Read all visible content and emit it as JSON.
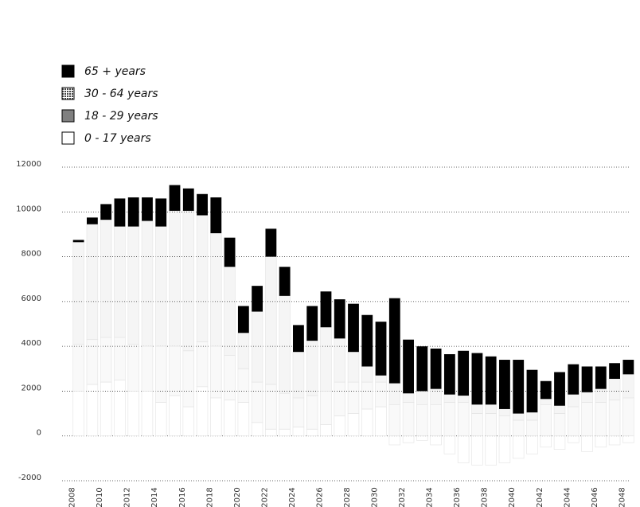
{
  "chart_data": {
    "type": "stacked-bar",
    "categories": [
      "2008",
      null,
      "2010",
      null,
      "2012",
      null,
      "2014",
      null,
      "2016",
      null,
      "2018",
      null,
      "2020",
      null,
      "2022",
      null,
      "2024",
      null,
      "2026",
      null,
      "2028",
      null,
      "2030",
      null,
      "2032",
      null,
      "2034",
      null,
      "2036",
      null,
      "2038",
      null,
      "2040",
      null,
      "2042",
      null,
      "2044",
      null,
      "2046",
      null,
      "2048"
    ],
    "series": [
      {
        "name": "65 + years",
        "color": "#000000",
        "values": [
          100,
          300,
          700,
          1250,
          1300,
          1050,
          1250,
          1150,
          1000,
          950,
          1600,
          1300,
          1200,
          1150,
          1250,
          1300,
          1200,
          1550,
          1600,
          1750,
          2150,
          2300,
          2400,
          3800,
          2400,
          2000,
          1800,
          1800,
          2000,
          2300,
          2150,
          2200,
          2400,
          1900,
          800,
          1500,
          1350,
          1150,
          1000,
          700,
          650
        ]
      },
      {
        "name": "30 - 64 years",
        "color": "#444444",
        "values": [
          4550,
          5150,
          5250,
          4950,
          5250,
          5600,
          5350,
          6050,
          6250,
          5650,
          5050,
          3950,
          1600,
          3150,
          5700,
          4350,
          2050,
          2450,
          2850,
          1950,
          1350,
          700,
          300,
          950,
          400,
          600,
          700,
          350,
          300,
          400,
          400,
          300,
          300,
          350,
          250,
          350,
          550,
          450,
          600,
          950,
          1050
        ]
      },
      {
        "name": "18 - 29 years",
        "color": "#808080",
        "values": [
          2100,
          2000,
          2000,
          1900,
          2100,
          2000,
          2500,
          2200,
          2500,
          2000,
          2300,
          2000,
          1500,
          1800,
          2000,
          1600,
          1300,
          1500,
          1500,
          1500,
          1400,
          1200,
          1100,
          1400,
          1500,
          1400,
          1400,
          1500,
          1500,
          1000,
          1000,
          900,
          700,
          700,
          1400,
          1000,
          1300,
          1500,
          1500,
          1600,
          1700
        ]
      },
      {
        "name": "0 - 17 years",
        "color": "#ffffff",
        "values": [
          2000,
          2300,
          2400,
          2500,
          2000,
          2000,
          1500,
          1800,
          1300,
          2200,
          1700,
          1600,
          1500,
          600,
          300,
          300,
          400,
          300,
          500,
          900,
          1000,
          1200,
          1300,
          -400,
          -300,
          -200,
          -400,
          -800,
          -1200,
          -1300,
          -1300,
          -1200,
          -1000,
          -800,
          -500,
          -600,
          -300,
          -700,
          -500,
          -400,
          -300
        ]
      }
    ],
    "ylim": [
      -2000,
      12000
    ],
    "yticks": [
      -2000,
      0,
      2000,
      4000,
      6000,
      8000,
      10000,
      12000
    ],
    "grid": true
  }
}
